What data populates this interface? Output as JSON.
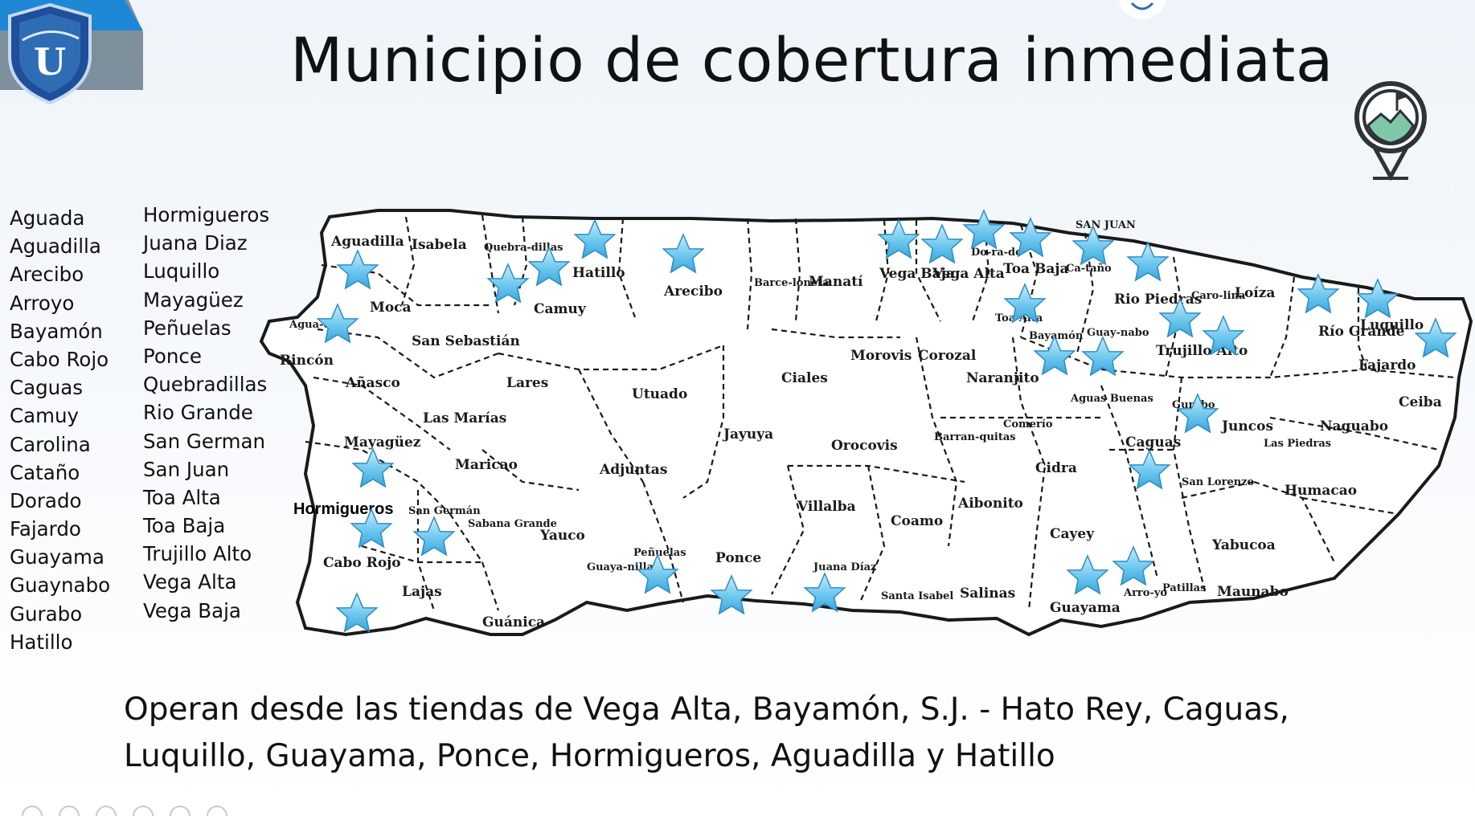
{
  "title": "Municipio de cobertura inmediata",
  "municipalities_col1": [
    "Aguada",
    "Aguadilla",
    "Arecibo",
    "Arroyo",
    "Bayamón",
    "Cabo Rojo",
    "Caguas",
    "Camuy",
    "Carolina",
    "Cataño",
    "Dorado",
    "Fajardo",
    "Guayama",
    "Guaynabo",
    "Gurabo",
    "Hatillo"
  ],
  "municipalities_col2": [
    "Hormigueros",
    "Juana Diaz",
    "Luquillo",
    "Mayagüez",
    "Peñuelas",
    "Ponce",
    "Quebradillas",
    "Rio Grande",
    "San German",
    "San Juan",
    "Toa Alta",
    "Toa Baja",
    "Trujillo Alto",
    "Vega Alta",
    "Vega Baja"
  ],
  "map": {
    "highlight_label": "Hormigueros",
    "labels": {
      "aguadilla": "Aguadilla",
      "isabela": "Isabela",
      "quebradillas": "Quebra-dillas",
      "hatillo": "Hatillo",
      "arecibo": "Arecibo",
      "barceloneta": "Barce-loneta",
      "manati": "Manatí",
      "vega_baja": "Vega Baja",
      "vega_alta": "Vega Alta",
      "dorado": "Do-ra-do",
      "toa_baja": "Toa Baja",
      "san_juan": "SAN JUAN",
      "catano": "Ca-taño",
      "rio_piedras": "Rio Piedras",
      "carolina": "Caro-lina",
      "loiza": "Loíza",
      "rio_grande": "Río Grande",
      "luquillo": "Luquillo",
      "fajardo": "Fajardo",
      "ceiba": "Ceiba",
      "naguabo": "Naguabo",
      "las_piedras": "Las Piedras",
      "humacao": "Humacao",
      "yabucoa": "Yabucoa",
      "maunabo": "Maunabo",
      "patillas": "Patillas",
      "arroyo": "Arro-yo",
      "guayama": "Guayama",
      "cayey": "Cayey",
      "salinas": "Salinas",
      "santa_isabel": "Santa Isabel",
      "coamo": "Coamo",
      "aibonito": "Aibonito",
      "juana_diaz": "Juana Díaz",
      "ponce": "Ponce",
      "penuelas": "Peñuelas",
      "guayanilla": "Guaya-nilla",
      "yauco": "Yauco",
      "guanica": "Guánica",
      "lajas": "Lajas",
      "cabo_rojo": "Cabo Rojo",
      "san_german": "San Germán",
      "sabana_grande": "Sabana Grande",
      "mayaguez": "Mayagüez",
      "maricao": "Maricao",
      "las_marias": "Las Marías",
      "anasco": "Añasco",
      "rincon": "Rincón",
      "aguada": "Agua-da",
      "moca": "Moca",
      "san_sebastian": "San Sebastián",
      "lares": "Lares",
      "camuy": "Camuy",
      "utuado": "Utuado",
      "adjuntas": "Adjuntas",
      "jayuya": "Jayuya",
      "ciales": "Ciales",
      "morovis": "Morovis",
      "orocovis": "Orocovis",
      "villalba": "Villalba",
      "corozal": "Corozal",
      "naranjito": "Naranjito",
      "barranquitas": "Barran-quitas",
      "toa_alta": "Toa Alta",
      "bayamon": "Bayamón",
      "guaynabo": "Guay-nabo",
      "trujillo_alto": "Trujillo Alto",
      "aguas_buenas": "Aguas Buenas",
      "comerio": "Comerío",
      "cidra": "Cidra",
      "caguas": "Caguas",
      "gurabo": "Gurabo",
      "juncos": "Juncos",
      "san_lorenzo": "San Lorenzo"
    }
  },
  "footer": {
    "line1": "Operan desde las tiendas de Vega Alta, Bayamón, S.J. - Hato Rey, Caguas,",
    "line2": "Luquillo, Guayama, Ponce, Hormigueros, Aguadilla y Hatillo"
  },
  "colors": {
    "star": "#6ec8ee",
    "star_stroke": "#2b8cc4",
    "logo_blue": "#2e6db4"
  },
  "icons": [
    "university-shield-logo",
    "map-pin-flag-icon",
    "star-marker-icon"
  ]
}
